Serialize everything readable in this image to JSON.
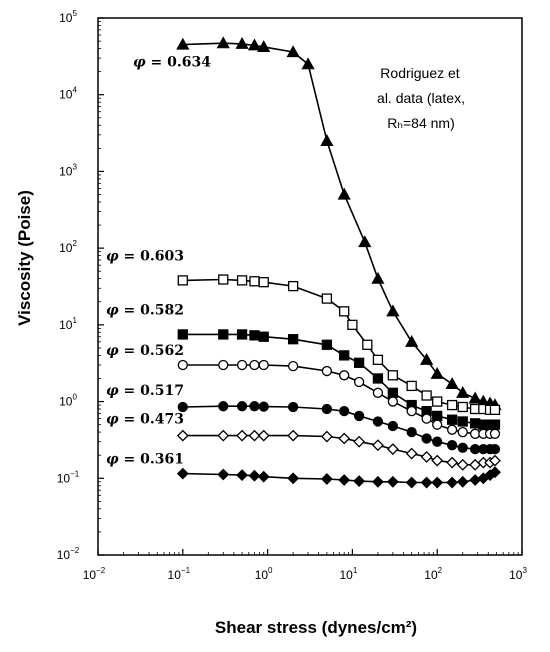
{
  "chart_data": {
    "type": "line",
    "xscale": "log",
    "yscale": "log",
    "xlim": [
      0.01,
      1000
    ],
    "ylim": [
      0.01,
      100000
    ],
    "xlabel": "Shear stress (dynes/cm²)",
    "ylabel": "Viscosity (Poise)",
    "x_ticks": [
      {
        "base": "10",
        "exp": "−2"
      },
      {
        "base": "10",
        "exp": "−1"
      },
      {
        "base": "10",
        "exp": "0"
      },
      {
        "base": "10",
        "exp": "1"
      },
      {
        "base": "10",
        "exp": "2"
      },
      {
        "base": "10",
        "exp": "3"
      }
    ],
    "y_ticks": [
      {
        "base": "10",
        "exp": "−2"
      },
      {
        "base": "10",
        "exp": "−1"
      },
      {
        "base": "10",
        "exp": "0"
      },
      {
        "base": "10",
        "exp": "1"
      },
      {
        "base": "10",
        "exp": "2"
      },
      {
        "base": "10",
        "exp": "3"
      },
      {
        "base": "10",
        "exp": "4"
      },
      {
        "base": "10",
        "exp": "5"
      }
    ],
    "annotation": [
      "Rodriguez et",
      "al. data (latex,",
      "Rₕ=84 nm)"
    ],
    "series": [
      {
        "name": "φ = 0.634",
        "phi": "φ",
        "value": "0.634",
        "marker": "triangle-filled",
        "points": [
          [
            0.1,
            45000
          ],
          [
            0.3,
            47000
          ],
          [
            0.5,
            46000
          ],
          [
            0.7,
            44000
          ],
          [
            0.9,
            42000
          ],
          [
            2,
            36000
          ],
          [
            3,
            25000
          ],
          [
            5,
            2500
          ],
          [
            8,
            500
          ],
          [
            14,
            120
          ],
          [
            20,
            40
          ],
          [
            30,
            15
          ],
          [
            50,
            6
          ],
          [
            75,
            3.5
          ],
          [
            100,
            2.3
          ],
          [
            150,
            1.7
          ],
          [
            200,
            1.3
          ],
          [
            280,
            1.1
          ],
          [
            350,
            1.0
          ],
          [
            420,
            0.95
          ],
          [
            480,
            0.9
          ]
        ]
      },
      {
        "name": "φ = 0.603",
        "phi": "φ",
        "value": "0.603",
        "marker": "square-open",
        "points": [
          [
            0.1,
            38
          ],
          [
            0.3,
            39
          ],
          [
            0.5,
            38
          ],
          [
            0.7,
            37
          ],
          [
            0.9,
            36
          ],
          [
            2,
            32
          ],
          [
            5,
            22
          ],
          [
            8,
            15
          ],
          [
            10,
            10
          ],
          [
            15,
            5.5
          ],
          [
            20,
            3.5
          ],
          [
            30,
            2.2
          ],
          [
            50,
            1.6
          ],
          [
            75,
            1.2
          ],
          [
            100,
            1.0
          ],
          [
            150,
            0.9
          ],
          [
            200,
            0.85
          ],
          [
            280,
            0.8
          ],
          [
            350,
            0.8
          ],
          [
            420,
            0.78
          ],
          [
            480,
            0.78
          ]
        ]
      },
      {
        "name": "φ = 0.582",
        "phi": "φ",
        "value": "0.582",
        "marker": "square-filled",
        "points": [
          [
            0.1,
            7.5
          ],
          [
            0.3,
            7.5
          ],
          [
            0.5,
            7.5
          ],
          [
            0.7,
            7.3
          ],
          [
            0.9,
            7.0
          ],
          [
            2,
            6.5
          ],
          [
            5,
            5.5
          ],
          [
            8,
            4.0
          ],
          [
            12,
            3.2
          ],
          [
            20,
            2.0
          ],
          [
            30,
            1.3
          ],
          [
            50,
            0.9
          ],
          [
            75,
            0.75
          ],
          [
            100,
            0.65
          ],
          [
            150,
            0.58
          ],
          [
            200,
            0.55
          ],
          [
            280,
            0.52
          ],
          [
            350,
            0.5
          ],
          [
            420,
            0.5
          ],
          [
            480,
            0.5
          ]
        ]
      },
      {
        "name": "φ = 0.562",
        "phi": "φ",
        "value": "0.562",
        "marker": "circle-open",
        "points": [
          [
            0.1,
            3.0
          ],
          [
            0.3,
            3.0
          ],
          [
            0.5,
            3.0
          ],
          [
            0.7,
            3.0
          ],
          [
            0.9,
            3.0
          ],
          [
            2,
            2.9
          ],
          [
            5,
            2.5
          ],
          [
            8,
            2.2
          ],
          [
            12,
            1.8
          ],
          [
            20,
            1.3
          ],
          [
            30,
            1.0
          ],
          [
            50,
            0.75
          ],
          [
            75,
            0.6
          ],
          [
            100,
            0.5
          ],
          [
            150,
            0.43
          ],
          [
            200,
            0.4
          ],
          [
            280,
            0.38
          ],
          [
            350,
            0.38
          ],
          [
            420,
            0.38
          ],
          [
            480,
            0.38
          ]
        ]
      },
      {
        "name": "φ = 0.517",
        "phi": "φ",
        "value": "0.517",
        "marker": "circle-filled",
        "points": [
          [
            0.1,
            0.85
          ],
          [
            0.3,
            0.87
          ],
          [
            0.5,
            0.87
          ],
          [
            0.7,
            0.87
          ],
          [
            0.9,
            0.86
          ],
          [
            2,
            0.85
          ],
          [
            5,
            0.8
          ],
          [
            8,
            0.75
          ],
          [
            12,
            0.65
          ],
          [
            20,
            0.55
          ],
          [
            30,
            0.48
          ],
          [
            50,
            0.4
          ],
          [
            75,
            0.33
          ],
          [
            100,
            0.3
          ],
          [
            150,
            0.27
          ],
          [
            200,
            0.25
          ],
          [
            280,
            0.24
          ],
          [
            350,
            0.24
          ],
          [
            420,
            0.24
          ],
          [
            480,
            0.24
          ]
        ]
      },
      {
        "name": "φ = 0.473",
        "phi": "φ",
        "value": "0.473",
        "marker": "diamond-open",
        "points": [
          [
            0.1,
            0.36
          ],
          [
            0.3,
            0.36
          ],
          [
            0.5,
            0.36
          ],
          [
            0.7,
            0.36
          ],
          [
            0.9,
            0.36
          ],
          [
            2,
            0.36
          ],
          [
            5,
            0.35
          ],
          [
            8,
            0.33
          ],
          [
            12,
            0.3
          ],
          [
            20,
            0.27
          ],
          [
            30,
            0.24
          ],
          [
            50,
            0.21
          ],
          [
            75,
            0.19
          ],
          [
            100,
            0.17
          ],
          [
            150,
            0.16
          ],
          [
            200,
            0.15
          ],
          [
            280,
            0.15
          ],
          [
            350,
            0.16
          ],
          [
            420,
            0.16
          ],
          [
            480,
            0.17
          ]
        ]
      },
      {
        "name": "φ = 0.361",
        "phi": "φ",
        "value": "0.361",
        "marker": "diamond-filled",
        "points": [
          [
            0.1,
            0.115
          ],
          [
            0.3,
            0.112
          ],
          [
            0.5,
            0.11
          ],
          [
            0.7,
            0.108
          ],
          [
            0.9,
            0.105
          ],
          [
            2,
            0.1
          ],
          [
            5,
            0.098
          ],
          [
            8,
            0.095
          ],
          [
            12,
            0.092
          ],
          [
            20,
            0.09
          ],
          [
            30,
            0.09
          ],
          [
            50,
            0.088
          ],
          [
            75,
            0.088
          ],
          [
            100,
            0.088
          ],
          [
            150,
            0.088
          ],
          [
            200,
            0.09
          ],
          [
            280,
            0.095
          ],
          [
            350,
            0.1
          ],
          [
            420,
            0.11
          ],
          [
            480,
            0.12
          ]
        ]
      }
    ]
  }
}
